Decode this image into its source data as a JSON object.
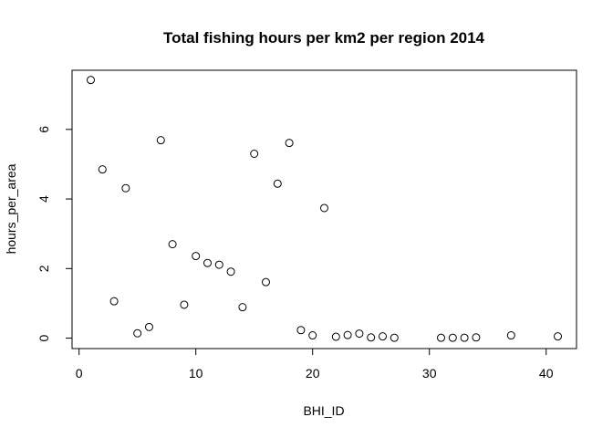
{
  "chart_data": {
    "type": "scatter",
    "title": "Total fishing hours per km2 per region 2014",
    "xlabel": "BHI_ID",
    "ylabel": "hours_per_area",
    "xlim": [
      -0.6,
      42.6
    ],
    "ylim": [
      -0.3,
      7.7
    ],
    "xticks": [
      0,
      10,
      20,
      30,
      40
    ],
    "yticks": [
      0,
      2,
      4,
      6
    ],
    "grid": false,
    "points": [
      {
        "x": 1,
        "y": 7.42
      },
      {
        "x": 2,
        "y": 4.85
      },
      {
        "x": 3,
        "y": 1.06
      },
      {
        "x": 4,
        "y": 4.31
      },
      {
        "x": 5,
        "y": 0.14
      },
      {
        "x": 6,
        "y": 0.32
      },
      {
        "x": 7,
        "y": 5.69
      },
      {
        "x": 8,
        "y": 2.7
      },
      {
        "x": 9,
        "y": 0.96
      },
      {
        "x": 10,
        "y": 2.36
      },
      {
        "x": 11,
        "y": 2.16
      },
      {
        "x": 12,
        "y": 2.11
      },
      {
        "x": 13,
        "y": 1.91
      },
      {
        "x": 14,
        "y": 0.89
      },
      {
        "x": 15,
        "y": 5.3
      },
      {
        "x": 16,
        "y": 1.61
      },
      {
        "x": 17,
        "y": 4.44
      },
      {
        "x": 18,
        "y": 5.61
      },
      {
        "x": 19,
        "y": 0.23
      },
      {
        "x": 20,
        "y": 0.08
      },
      {
        "x": 21,
        "y": 3.74
      },
      {
        "x": 22,
        "y": 0.04
      },
      {
        "x": 23,
        "y": 0.09
      },
      {
        "x": 24,
        "y": 0.13
      },
      {
        "x": 25,
        "y": 0.02
      },
      {
        "x": 26,
        "y": 0.05
      },
      {
        "x": 27,
        "y": 0.01
      },
      {
        "x": 31,
        "y": 0.01
      },
      {
        "x": 32,
        "y": 0.01
      },
      {
        "x": 33,
        "y": 0.01
      },
      {
        "x": 34,
        "y": 0.02
      },
      {
        "x": 37,
        "y": 0.08
      },
      {
        "x": 41,
        "y": 0.05
      }
    ]
  }
}
